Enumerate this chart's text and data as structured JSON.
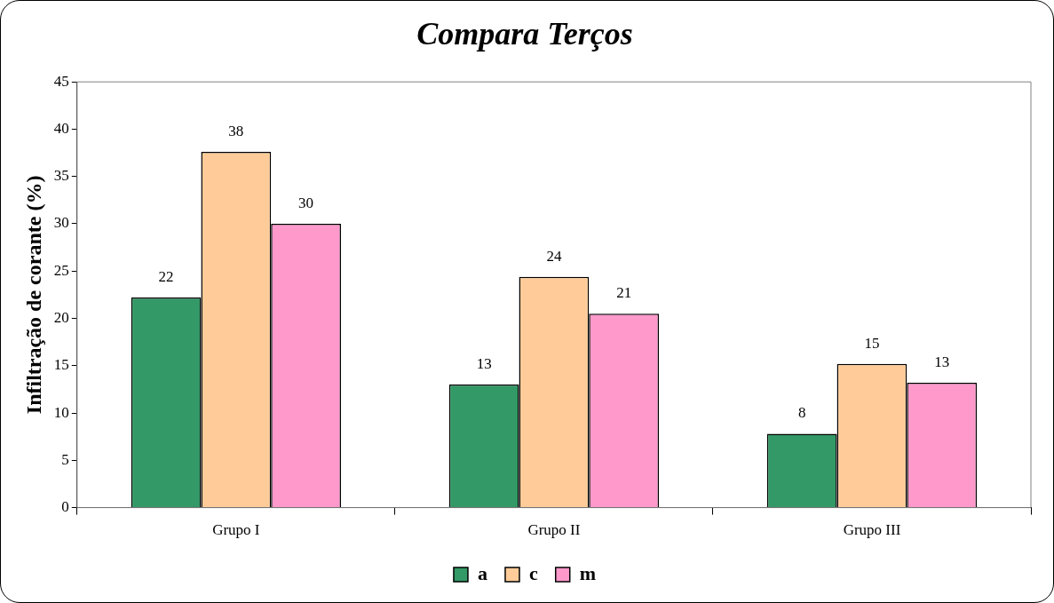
{
  "chart_data": {
    "type": "bar",
    "title": "Compara Terços",
    "ylabel": "Infiltração de corante (%)",
    "categories": [
      "Grupo I",
      "Grupo II",
      "Grupo III"
    ],
    "series": [
      {
        "name": "a",
        "color": "#339966",
        "values": [
          22.2,
          13,
          7.8
        ],
        "value_labels": [
          "22",
          "13",
          "8"
        ]
      },
      {
        "name": "c",
        "color": "#ffcc99",
        "values": [
          37.6,
          24.4,
          15.2
        ],
        "value_labels": [
          "38",
          "24",
          "15"
        ]
      },
      {
        "name": "m",
        "color": "#ff99cc",
        "values": [
          30,
          20.5,
          13.2
        ],
        "value_labels": [
          "30",
          "21",
          "13"
        ]
      }
    ],
    "ylim": [
      0,
      45
    ],
    "yticks": [
      0,
      5,
      10,
      15,
      20,
      25,
      30,
      35,
      40,
      45
    ],
    "grid": false,
    "legend": "bottom"
  }
}
